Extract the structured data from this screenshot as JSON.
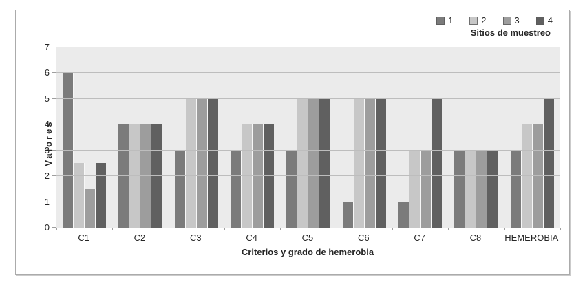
{
  "legend": {
    "title": "Sitios de muestreo",
    "items": [
      {
        "label": "1",
        "color": "#7b7b7b"
      },
      {
        "label": "2",
        "color": "#c7c7c7"
      },
      {
        "label": "3",
        "color": "#9d9d9d"
      },
      {
        "label": "4",
        "color": "#606060"
      }
    ]
  },
  "axes": {
    "y_title": "Valores",
    "x_title": "Criterios y grado de hemerobia",
    "y_tick_labels": [
      "0",
      "1",
      "2",
      "3",
      "4",
      "5",
      "6",
      "7"
    ]
  },
  "chart_data": {
    "type": "bar",
    "title": "",
    "categories": [
      "C1",
      "C2",
      "C3",
      "C4",
      "C5",
      "C6",
      "C7",
      "C8",
      "HEMEROBIA"
    ],
    "series": [
      {
        "name": "1",
        "color": "#7b7b7b",
        "values": [
          6,
          4,
          3,
          3,
          3,
          1,
          1,
          3,
          3
        ]
      },
      {
        "name": "2",
        "color": "#c7c7c7",
        "values": [
          2.5,
          4,
          5,
          4,
          5,
          5,
          3,
          3,
          4
        ]
      },
      {
        "name": "3",
        "color": "#9d9d9d",
        "values": [
          1.5,
          4,
          5,
          4,
          5,
          5,
          3,
          3,
          4
        ]
      },
      {
        "name": "4",
        "color": "#606060",
        "values": [
          2.5,
          4,
          5,
          4,
          5,
          5,
          5,
          3,
          5
        ]
      }
    ],
    "xlabel": "Criterios y grado de hemerobia",
    "ylabel": "Valores",
    "ylim": [
      0,
      7
    ],
    "y_tick_step": 1,
    "grid": true,
    "legend_position": "top-right",
    "legend_title": "Sitios de muestreo",
    "plot_background": "#ebebeb",
    "gridline_color": "#bdbdbd"
  }
}
